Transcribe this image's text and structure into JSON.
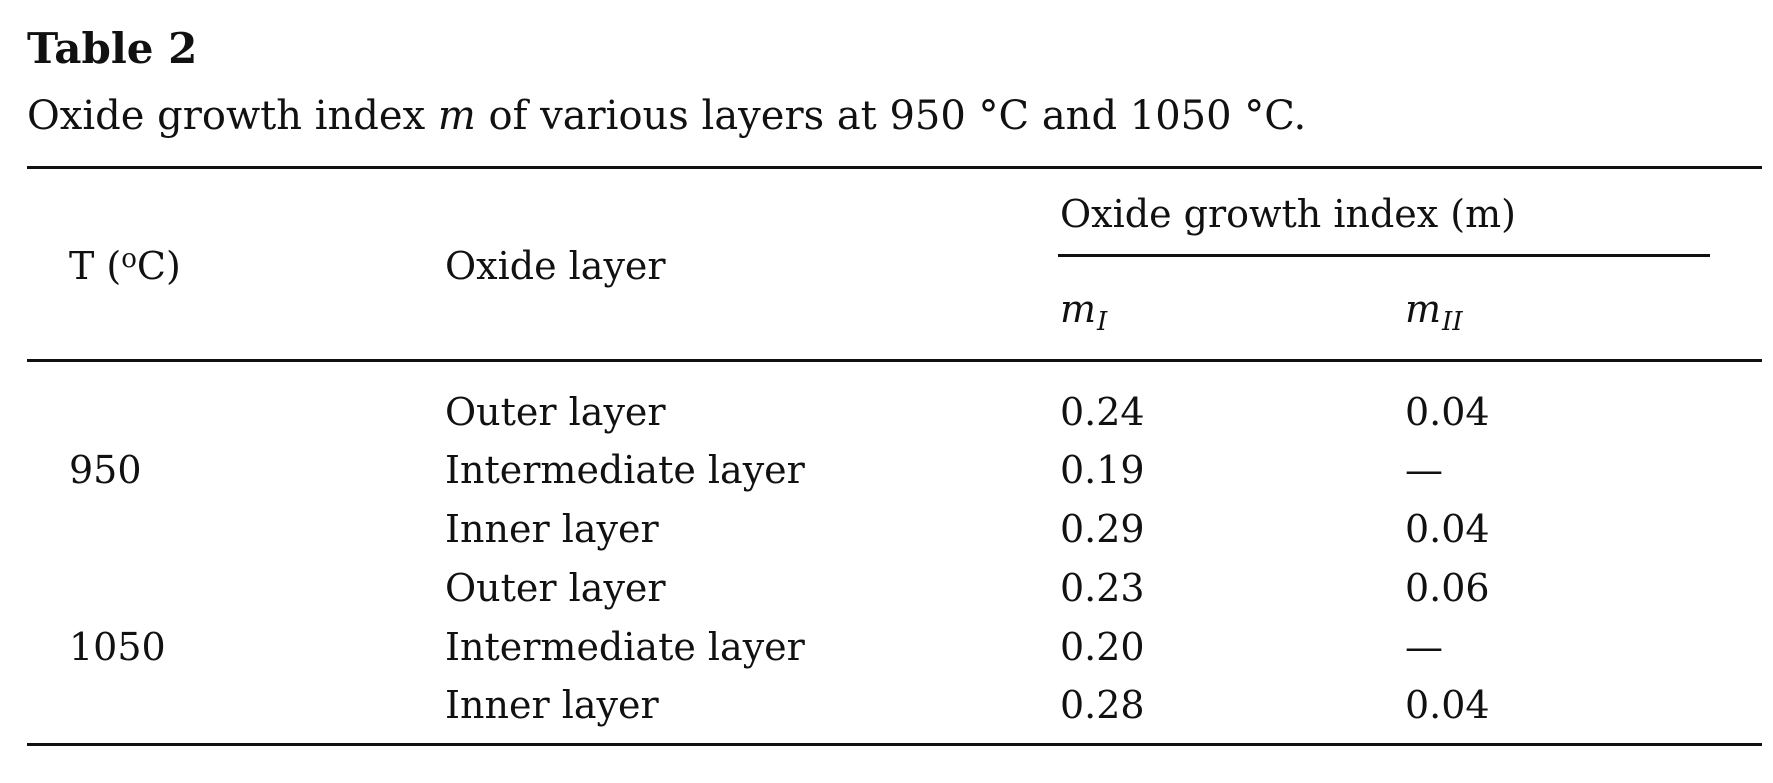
{
  "table_label": "Table 2",
  "caption": {
    "before_var": "Oxide growth index ",
    "var": "m",
    "after_var": " of various layers at 950 °C and 1050 °C."
  },
  "header": {
    "temperature": {
      "prefix": "T (",
      "superscript": "o",
      "suffix": "C)"
    },
    "oxide_layer": "Oxide layer",
    "group": "Oxide growth index (m)",
    "m1": {
      "base": "m",
      "subscript": "I"
    },
    "m2": {
      "base": "m",
      "subscript": "II"
    }
  },
  "rows": [
    {
      "temperature": "",
      "layer": "Outer layer",
      "m1": "0.24",
      "m2": "0.04"
    },
    {
      "temperature": "950",
      "layer": "Intermediate layer",
      "m1": "0.19",
      "m2": "—"
    },
    {
      "temperature": "",
      "layer": "Inner layer",
      "m1": "0.29",
      "m2": "0.04"
    },
    {
      "temperature": "",
      "layer": "Outer layer",
      "m1": "0.23",
      "m2": "0.06"
    },
    {
      "temperature": "1050",
      "layer": "Intermediate layer",
      "m1": "0.20",
      "m2": "—"
    },
    {
      "temperature": "",
      "layer": "Inner layer",
      "m1": "0.28",
      "m2": "0.04"
    }
  ]
}
